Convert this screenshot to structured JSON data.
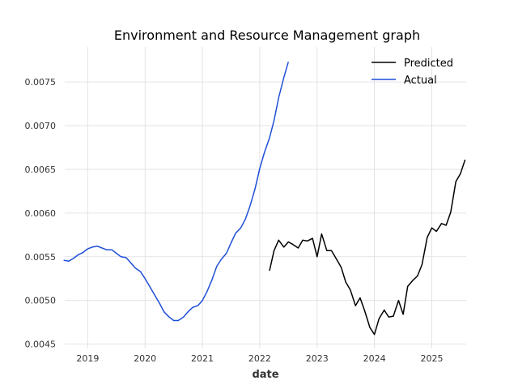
{
  "chart_data": {
    "type": "line",
    "title": "Environment and Resource Management graph",
    "xlabel": "date",
    "ylabel": "",
    "xlim": [
      2018.6,
      2025.6
    ],
    "ylim": [
      0.00445,
      0.0079
    ],
    "x_ticks": [
      {
        "value": 2019,
        "label": "2019"
      },
      {
        "value": 2020,
        "label": "2020"
      },
      {
        "value": 2021,
        "label": "2021"
      },
      {
        "value": 2022,
        "label": "2022"
      },
      {
        "value": 2023,
        "label": "2023"
      },
      {
        "value": 2024,
        "label": "2024"
      },
      {
        "value": 2025,
        "label": "2025"
      }
    ],
    "y_ticks": [
      {
        "value": 0.0045,
        "label": "0.0045"
      },
      {
        "value": 0.005,
        "label": "0.0050"
      },
      {
        "value": 0.0055,
        "label": "0.0055"
      },
      {
        "value": 0.006,
        "label": "0.0060"
      },
      {
        "value": 0.0065,
        "label": "0.0065"
      },
      {
        "value": 0.007,
        "label": "0.0070"
      },
      {
        "value": 0.0075,
        "label": "0.0075"
      }
    ],
    "grid": true,
    "legend": "top-right",
    "series": [
      {
        "name": "Predicted",
        "color": "#000000",
        "points": [
          [
            2022.17,
            0.00534
          ],
          [
            2022.25,
            0.00557
          ],
          [
            2022.33,
            0.00569
          ],
          [
            2022.42,
            0.00561
          ],
          [
            2022.5,
            0.00567
          ],
          [
            2022.58,
            0.00564
          ],
          [
            2022.67,
            0.0056
          ],
          [
            2022.75,
            0.00569
          ],
          [
            2022.83,
            0.00568
          ],
          [
            2022.92,
            0.00571
          ],
          [
            2023.0,
            0.0055
          ],
          [
            2023.08,
            0.00576
          ],
          [
            2023.17,
            0.00557
          ],
          [
            2023.25,
            0.00557
          ],
          [
            2023.33,
            0.00548
          ],
          [
            2023.42,
            0.00538
          ],
          [
            2023.5,
            0.00521
          ],
          [
            2023.58,
            0.00512
          ],
          [
            2023.67,
            0.00494
          ],
          [
            2023.75,
            0.00503
          ],
          [
            2023.83,
            0.00488
          ],
          [
            2023.92,
            0.00469
          ],
          [
            2024.0,
            0.00461
          ],
          [
            2024.08,
            0.00479
          ],
          [
            2024.17,
            0.00489
          ],
          [
            2024.25,
            0.00481
          ],
          [
            2024.33,
            0.00482
          ],
          [
            2024.42,
            0.005
          ],
          [
            2024.5,
            0.00484
          ],
          [
            2024.58,
            0.00516
          ],
          [
            2024.67,
            0.00523
          ],
          [
            2024.75,
            0.00528
          ],
          [
            2024.83,
            0.00541
          ],
          [
            2024.92,
            0.00572
          ],
          [
            2025.0,
            0.00583
          ],
          [
            2025.08,
            0.00579
          ],
          [
            2025.17,
            0.00588
          ],
          [
            2025.25,
            0.00586
          ],
          [
            2025.33,
            0.00601
          ],
          [
            2025.42,
            0.00636
          ],
          [
            2025.5,
            0.00645
          ],
          [
            2025.58,
            0.00661
          ]
        ]
      },
      {
        "name": "Actual",
        "color": "#1f4fd8",
        "points": [
          [
            2018.58,
            0.00546
          ],
          [
            2018.67,
            0.00545
          ],
          [
            2018.75,
            0.00548
          ],
          [
            2018.83,
            0.00552
          ],
          [
            2018.92,
            0.00555
          ],
          [
            2019.0,
            0.00559
          ],
          [
            2019.08,
            0.00561
          ],
          [
            2019.17,
            0.00562
          ],
          [
            2019.25,
            0.0056
          ],
          [
            2019.33,
            0.00558
          ],
          [
            2019.42,
            0.00558
          ],
          [
            2019.5,
            0.00554
          ],
          [
            2019.58,
            0.0055
          ],
          [
            2019.67,
            0.00549
          ],
          [
            2019.75,
            0.00543
          ],
          [
            2019.83,
            0.00537
          ],
          [
            2019.92,
            0.00533
          ],
          [
            2020.0,
            0.00525
          ],
          [
            2020.08,
            0.00516
          ],
          [
            2020.17,
            0.00506
          ],
          [
            2020.25,
            0.00497
          ],
          [
            2020.33,
            0.00487
          ],
          [
            2020.42,
            0.00481
          ],
          [
            2020.5,
            0.00477
          ],
          [
            2020.58,
            0.00477
          ],
          [
            2020.67,
            0.00481
          ],
          [
            2020.75,
            0.00487
          ],
          [
            2020.83,
            0.00492
          ],
          [
            2020.92,
            0.00494
          ],
          [
            2021.0,
            0.005
          ],
          [
            2021.08,
            0.0051
          ],
          [
            2021.17,
            0.00524
          ],
          [
            2021.25,
            0.00539
          ],
          [
            2021.33,
            0.00547
          ],
          [
            2021.42,
            0.00554
          ],
          [
            2021.5,
            0.00566
          ],
          [
            2021.58,
            0.00577
          ],
          [
            2021.67,
            0.00583
          ],
          [
            2021.75,
            0.00593
          ],
          [
            2021.83,
            0.00608
          ],
          [
            2021.92,
            0.00628
          ],
          [
            2022.0,
            0.00651
          ],
          [
            2022.08,
            0.00669
          ],
          [
            2022.17,
            0.00686
          ],
          [
            2022.25,
            0.00706
          ],
          [
            2022.33,
            0.00732
          ],
          [
            2022.42,
            0.00755
          ],
          [
            2022.5,
            0.00773
          ]
        ]
      }
    ]
  }
}
